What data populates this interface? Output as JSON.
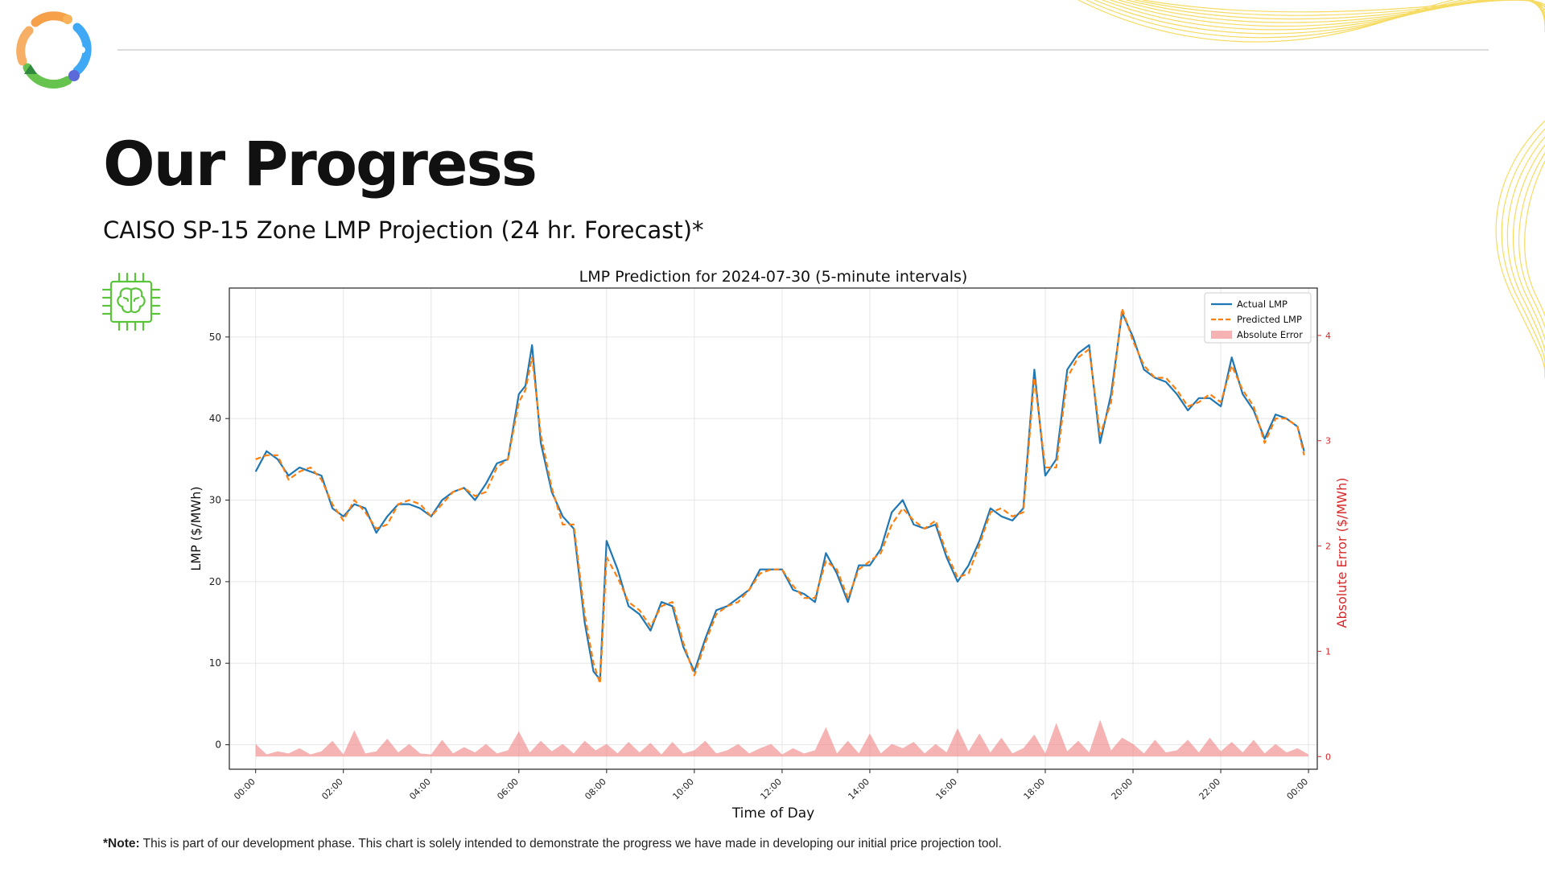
{
  "slide": {
    "title": "Our Progress",
    "subtitle": "CAISO SP-15 Zone LMP Projection (24 hr. Forecast)*",
    "note_prefix": "*Note:",
    "note_text": " This is part of our development phase. This chart is solely intended to demonstrate the progress we have made in developing our initial price projection tool.",
    "icons": {
      "logo": "circular-logo-icon",
      "chart_icon": "brain-chip-icon"
    },
    "colors": {
      "accent_yellow": "#f5d33b",
      "icon_green": "#5ac43a",
      "logo_orange": "#f6a04a",
      "logo_blue": "#3fa9f5",
      "logo_green": "#66c34d"
    }
  },
  "chart_data": {
    "type": "line",
    "title": "LMP Prediction for 2024-07-30 (5-minute intervals)",
    "xlabel": "Time of Day",
    "ylabel": "LMP ($/MWh)",
    "y2label": "Absolute Error ($/MWh)",
    "ylim": [
      -3,
      56
    ],
    "y2lim": [
      -0.12,
      4.45
    ],
    "yticks": [
      0,
      10,
      20,
      30,
      40,
      50
    ],
    "y2ticks": [
      0,
      1,
      2,
      3,
      4
    ],
    "xlim": [
      -0.6,
      24.2
    ],
    "xticks": [
      "00:00",
      "02:00",
      "04:00",
      "06:00",
      "08:00",
      "10:00",
      "12:00",
      "14:00",
      "16:00",
      "18:00",
      "20:00",
      "22:00",
      "00:00"
    ],
    "legend_position": "top-right",
    "grid": true,
    "series": [
      {
        "name": "Actual LMP",
        "color": "#1f77b4",
        "style": "solid",
        "x": [
          0,
          0.25,
          0.5,
          0.75,
          1.0,
          1.25,
          1.5,
          1.75,
          2.0,
          2.25,
          2.5,
          2.75,
          3.0,
          3.25,
          3.5,
          3.75,
          4.0,
          4.25,
          4.5,
          4.75,
          5.0,
          5.25,
          5.5,
          5.75,
          6.0,
          6.15,
          6.3,
          6.5,
          6.75,
          7.0,
          7.25,
          7.5,
          7.7,
          7.85,
          8.0,
          8.25,
          8.5,
          8.75,
          9.0,
          9.25,
          9.5,
          9.75,
          10.0,
          10.25,
          10.5,
          10.75,
          11.0,
          11.25,
          11.5,
          11.75,
          12.0,
          12.25,
          12.5,
          12.75,
          13.0,
          13.25,
          13.5,
          13.75,
          14.0,
          14.25,
          14.5,
          14.75,
          15.0,
          15.25,
          15.5,
          15.75,
          16.0,
          16.25,
          16.5,
          16.75,
          17.0,
          17.25,
          17.5,
          17.75,
          18.0,
          18.25,
          18.5,
          18.75,
          19.0,
          19.25,
          19.5,
          19.75,
          20.0,
          20.25,
          20.5,
          20.75,
          21.0,
          21.25,
          21.5,
          21.75,
          22.0,
          22.25,
          22.5,
          22.75,
          23.0,
          23.25,
          23.5,
          23.75,
          23.9
        ],
        "y": [
          33.5,
          36,
          35,
          33,
          34,
          33.5,
          33,
          29,
          28,
          29.5,
          29,
          26,
          28,
          29.5,
          29.5,
          29,
          28,
          30,
          31,
          31.5,
          30,
          32,
          34.5,
          35,
          43,
          44,
          49,
          37,
          31,
          28,
          26.5,
          15,
          9,
          8,
          25,
          21.5,
          17,
          16,
          14,
          17.5,
          17,
          12,
          9,
          13,
          16.5,
          17,
          18,
          19,
          21.5,
          21.5,
          21.5,
          19,
          18.5,
          17.5,
          23.5,
          21,
          17.5,
          22,
          22,
          24,
          28.5,
          30,
          27,
          26.5,
          27,
          23,
          20,
          22,
          25,
          29,
          28,
          27.5,
          29,
          46,
          33,
          35,
          46,
          48,
          49,
          37,
          43,
          53,
          50,
          46,
          45,
          44.5,
          43,
          41,
          42.5,
          42.5,
          41.5,
          47.5,
          43,
          41,
          37.5,
          40.5,
          40,
          39,
          36
        ]
      },
      {
        "name": "Predicted LMP",
        "color": "#ff7f0e",
        "style": "dashed",
        "x": [
          0,
          0.25,
          0.5,
          0.75,
          1.0,
          1.25,
          1.5,
          1.75,
          2.0,
          2.25,
          2.5,
          2.75,
          3.0,
          3.25,
          3.5,
          3.75,
          4.0,
          4.25,
          4.5,
          4.75,
          5.0,
          5.25,
          5.5,
          5.75,
          6.0,
          6.15,
          6.3,
          6.5,
          6.75,
          7.0,
          7.25,
          7.5,
          7.7,
          7.85,
          8.0,
          8.25,
          8.5,
          8.75,
          9.0,
          9.25,
          9.5,
          9.75,
          10.0,
          10.25,
          10.5,
          10.75,
          11.0,
          11.25,
          11.5,
          11.75,
          12.0,
          12.25,
          12.5,
          12.75,
          13.0,
          13.25,
          13.5,
          13.75,
          14.0,
          14.25,
          14.5,
          14.75,
          15.0,
          15.25,
          15.5,
          15.75,
          16.0,
          16.25,
          16.5,
          16.75,
          17.0,
          17.25,
          17.5,
          17.75,
          18.0,
          18.25,
          18.5,
          18.75,
          19.0,
          19.25,
          19.5,
          19.75,
          20.0,
          20.25,
          20.5,
          20.75,
          21.0,
          21.25,
          21.5,
          21.75,
          22.0,
          22.25,
          22.5,
          22.75,
          23.0,
          23.25,
          23.5,
          23.75,
          23.9
        ],
        "y": [
          35,
          35.5,
          35.5,
          32.5,
          33.5,
          34,
          32.5,
          29.5,
          27.5,
          30,
          28.5,
          26.5,
          27,
          29.5,
          30,
          29.5,
          28,
          29.5,
          31,
          31.5,
          30.5,
          31,
          34,
          35,
          42,
          43.5,
          47.5,
          38,
          31.5,
          27,
          27,
          16,
          10,
          7.5,
          23,
          20.5,
          17.5,
          16.5,
          14.5,
          17,
          17.5,
          12.5,
          8.5,
          12.5,
          16,
          17,
          17.5,
          19,
          21,
          21.5,
          21.5,
          19.5,
          18,
          18,
          22.5,
          21.5,
          18,
          21.5,
          22.5,
          23.5,
          27,
          29,
          27.5,
          26.5,
          27.5,
          23.5,
          20.5,
          21,
          24.5,
          28.5,
          29,
          28,
          28.5,
          45,
          34,
          34,
          45,
          47.5,
          48.5,
          38,
          42,
          53.5,
          49.5,
          46.5,
          45,
          45,
          43.5,
          41.5,
          42,
          43,
          42,
          46.5,
          43.5,
          41.5,
          37,
          40,
          40,
          39,
          35.5
        ]
      },
      {
        "name": "Absolute Error",
        "color": "#f08080",
        "style": "area",
        "axis": "y2",
        "x": [
          0,
          0.25,
          0.5,
          0.75,
          1.0,
          1.25,
          1.5,
          1.75,
          2.0,
          2.25,
          2.5,
          2.75,
          3.0,
          3.25,
          3.5,
          3.75,
          4.0,
          4.25,
          4.5,
          4.75,
          5.0,
          5.25,
          5.5,
          5.75,
          6.0,
          6.25,
          6.5,
          6.75,
          7.0,
          7.25,
          7.5,
          7.75,
          8.0,
          8.25,
          8.5,
          8.75,
          9.0,
          9.25,
          9.5,
          9.75,
          10.0,
          10.25,
          10.5,
          10.75,
          11.0,
          11.25,
          11.5,
          11.75,
          12.0,
          12.25,
          12.5,
          12.75,
          13.0,
          13.25,
          13.5,
          13.75,
          14.0,
          14.25,
          14.5,
          14.75,
          15.0,
          15.25,
          15.5,
          15.75,
          16.0,
          16.25,
          16.5,
          16.75,
          17.0,
          17.25,
          17.5,
          17.75,
          18.0,
          18.25,
          18.5,
          18.75,
          19.0,
          19.25,
          19.5,
          19.75,
          20.0,
          20.25,
          20.5,
          20.75,
          21.0,
          21.25,
          21.5,
          21.75,
          22.0,
          22.25,
          22.5,
          22.75,
          23.0,
          23.25,
          23.5,
          23.75,
          24.0
        ],
        "y": [
          0.12,
          0.02,
          0.05,
          0.03,
          0.08,
          0.02,
          0.05,
          0.15,
          0.02,
          0.25,
          0.03,
          0.05,
          0.17,
          0.04,
          0.12,
          0.03,
          0.02,
          0.16,
          0.03,
          0.09,
          0.04,
          0.12,
          0.03,
          0.06,
          0.24,
          0.04,
          0.15,
          0.05,
          0.12,
          0.03,
          0.15,
          0.06,
          0.12,
          0.03,
          0.14,
          0.04,
          0.13,
          0.02,
          0.14,
          0.03,
          0.06,
          0.15,
          0.03,
          0.06,
          0.12,
          0.03,
          0.08,
          0.12,
          0.02,
          0.08,
          0.03,
          0.06,
          0.28,
          0.03,
          0.15,
          0.03,
          0.22,
          0.03,
          0.12,
          0.08,
          0.14,
          0.03,
          0.12,
          0.04,
          0.27,
          0.05,
          0.22,
          0.04,
          0.18,
          0.03,
          0.08,
          0.21,
          0.03,
          0.32,
          0.05,
          0.15,
          0.04,
          0.35,
          0.06,
          0.18,
          0.12,
          0.03,
          0.16,
          0.04,
          0.06,
          0.16,
          0.04,
          0.18,
          0.05,
          0.14,
          0.04,
          0.16,
          0.03,
          0.12,
          0.04,
          0.08,
          0.02
        ]
      }
    ]
  }
}
